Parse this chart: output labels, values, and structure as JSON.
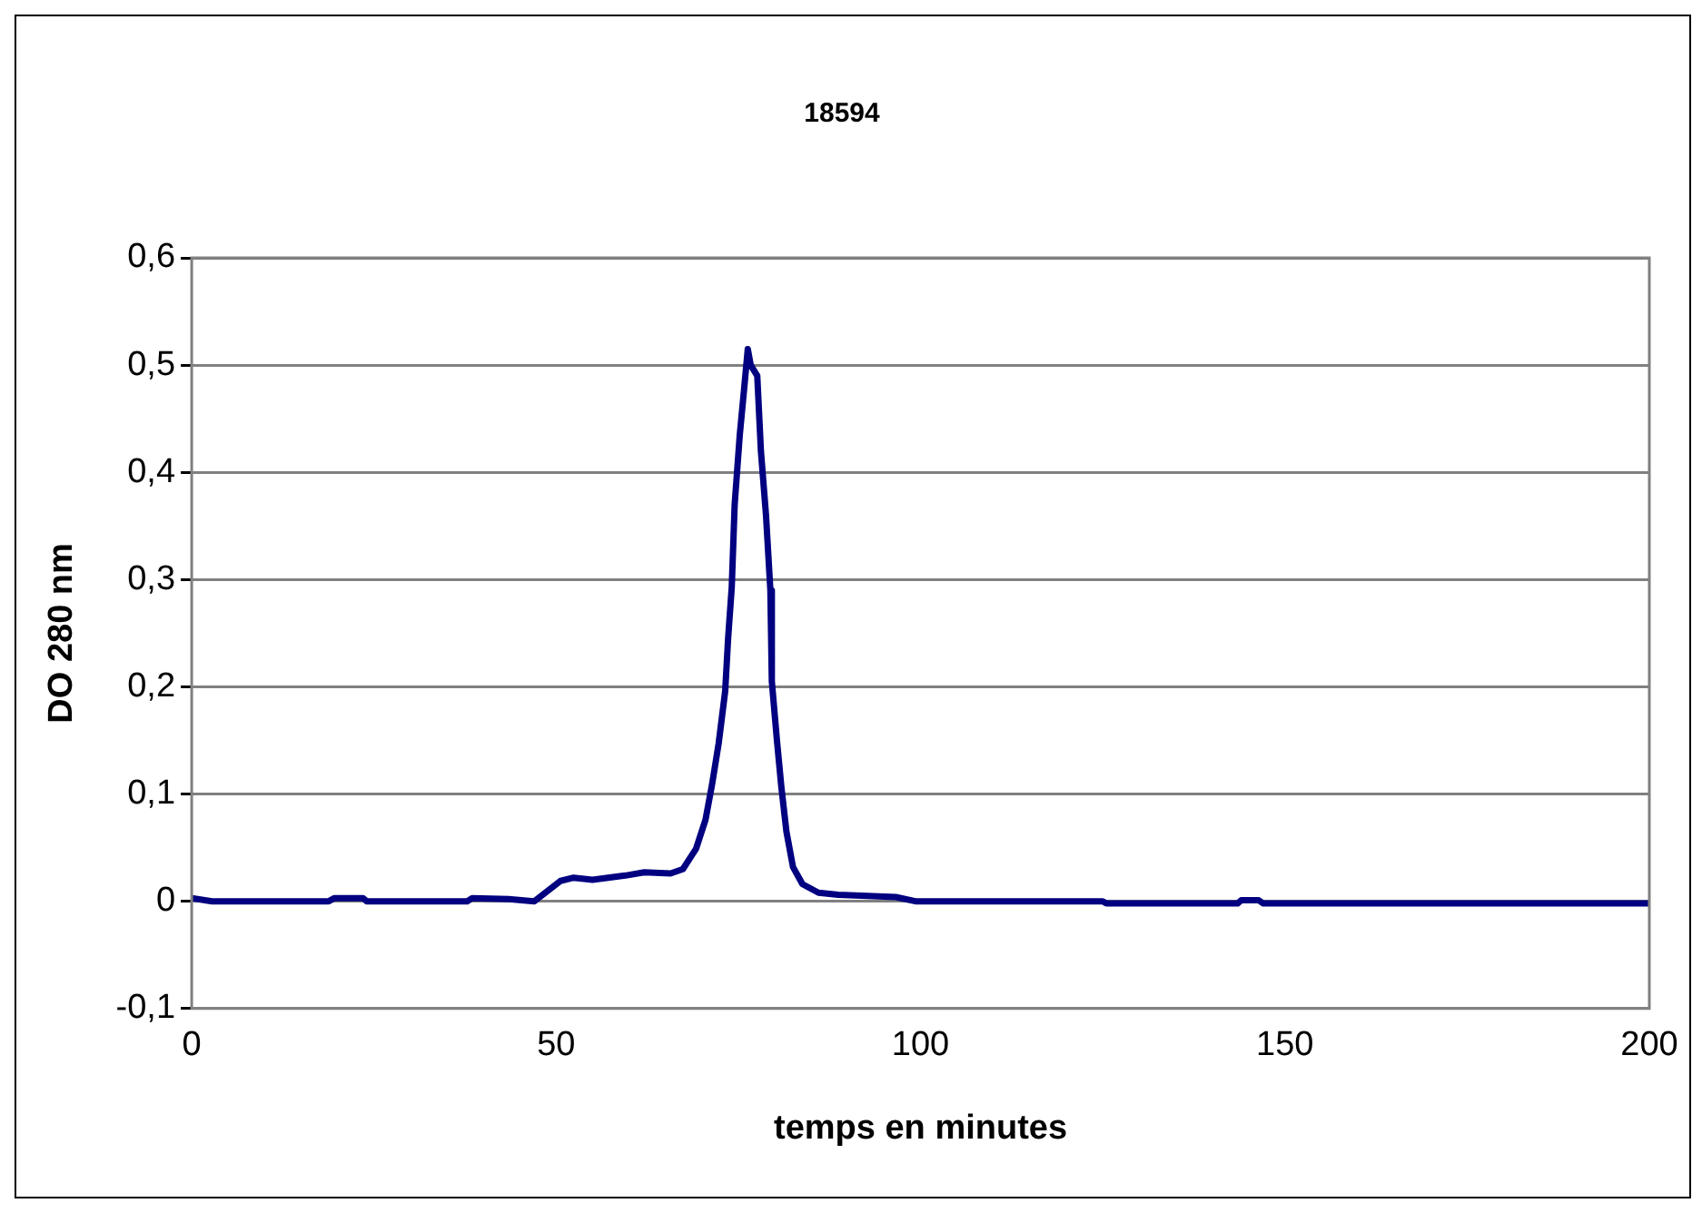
{
  "chart_data": {
    "type": "line",
    "title": "18594",
    "xlabel": "temps en minutes",
    "ylabel": "DO 280 nm",
    "x": [
      0,
      2.8,
      18.8,
      19.6,
      23.5,
      24,
      37.8,
      38.5,
      43.5,
      47,
      50.6,
      52.4,
      55,
      59.5,
      62.1,
      65.7,
      67.4,
      69.2,
      70.5,
      71.4,
      72.3,
      73.2,
      73.6,
      74.1,
      74.5,
      75.2,
      75.8,
      76.3,
      76.7,
      77.6,
      78.1,
      78.8,
      79.4,
      79.6,
      80.3,
      80.9,
      81.6,
      82.5,
      83.8,
      86,
      88.7,
      96.6,
      99.3,
      125,
      125.5,
      143.5,
      144,
      146.4,
      147,
      200
    ],
    "series": [
      {
        "color": "#000080",
        "values": [
          0.003,
          0,
          0,
          0.003,
          0.003,
          0,
          0,
          0.003,
          0.002,
          0,
          0.019,
          0.022,
          0.02,
          0.024,
          0.027,
          0.026,
          0.03,
          0.049,
          0.076,
          0.109,
          0.147,
          0.196,
          0.245,
          0.293,
          0.37,
          0.435,
          0.478,
          0.515,
          0.5,
          0.49,
          0.42,
          0.36,
          0.29,
          0.205,
          0.15,
          0.107,
          0.065,
          0.032,
          0.016,
          0.008,
          0.006,
          0.004,
          0,
          0,
          -0.002,
          -0.002,
          0.001,
          0.001,
          -0.002,
          -0.002
        ]
      }
    ],
    "xlim": [
      0,
      200
    ],
    "xticks": [
      0,
      50,
      100,
      150,
      200
    ],
    "ylim": [
      -0.1,
      0.6
    ],
    "yticks": [
      {
        "value": -0.1,
        "label": "-0,1"
      },
      {
        "value": 0,
        "label": "0"
      },
      {
        "value": 0.1,
        "label": "0,1"
      },
      {
        "value": 0.2,
        "label": "0,2"
      },
      {
        "value": 0.3,
        "label": "0,3"
      },
      {
        "value": 0.4,
        "label": "0,4"
      },
      {
        "value": 0.5,
        "label": "0,5"
      },
      {
        "value": 0.6,
        "label": "0,6"
      }
    ],
    "grid": "y",
    "legend": false,
    "marker": "none",
    "line_style": "solid"
  }
}
